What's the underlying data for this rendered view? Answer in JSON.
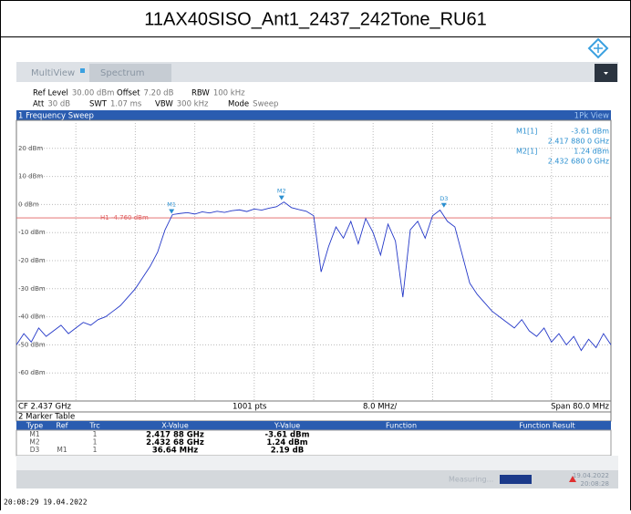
{
  "header": {
    "title": "11AX40SISO_Ant1_2437_242Tone_RU61"
  },
  "toolbar": {
    "app": "MultiView",
    "tab": "Spectrum"
  },
  "settings": {
    "row1": [
      [
        "Ref Level",
        "30.00 dBm"
      ],
      [
        "Offset",
        "7.20 dB"
      ],
      [
        "RBW",
        "100 kHz"
      ]
    ],
    "row2": [
      [
        "Att",
        "30 dB"
      ],
      [
        "SWT",
        "1.07 ms"
      ],
      [
        "VBW",
        "300 kHz"
      ],
      [
        "Mode",
        "Sweep"
      ]
    ]
  },
  "chart_data": {
    "type": "line",
    "title": "1 Frequency Sweep",
    "trace_label": "1Pk View",
    "x": [
      2.397,
      2.398,
      2.399,
      2.4,
      2.401,
      2.402,
      2.403,
      2.404,
      2.405,
      2.406,
      2.407,
      2.408,
      2.409,
      2.41,
      2.411,
      2.412,
      2.413,
      2.414,
      2.415,
      2.416,
      2.417,
      2.418,
      2.419,
      2.42,
      2.421,
      2.422,
      2.423,
      2.424,
      2.425,
      2.426,
      2.427,
      2.428,
      2.429,
      2.43,
      2.431,
      2.432,
      2.433,
      2.434,
      2.435,
      2.436,
      2.437,
      2.438,
      2.439,
      2.44,
      2.441,
      2.442,
      2.443,
      2.444,
      2.445,
      2.446,
      2.447,
      2.448,
      2.449,
      2.45,
      2.451,
      2.452,
      2.453,
      2.454,
      2.455,
      2.456,
      2.457,
      2.458,
      2.459,
      2.46,
      2.461,
      2.462,
      2.463,
      2.464,
      2.465,
      2.466,
      2.467,
      2.468,
      2.469,
      2.47,
      2.471,
      2.472,
      2.473,
      2.474,
      2.475,
      2.476,
      2.477
    ],
    "series": [
      {
        "color": "#2438c8",
        "values": [
          -50,
          -46,
          -49,
          -44,
          -47,
          -45,
          -43,
          -46,
          -44,
          -42,
          -43,
          -41,
          -40,
          -38,
          -36,
          -33,
          -30,
          -26,
          -22,
          -17,
          -9,
          -3.6,
          -3.2,
          -2.9,
          -3.4,
          -2.6,
          -3.0,
          -2.4,
          -2.8,
          -2.2,
          -1.9,
          -2.5,
          -1.6,
          -2.0,
          -1.3,
          -0.8,
          0.9,
          -1.1,
          -1.8,
          -2.4,
          -4,
          -24,
          -15,
          -8,
          -12,
          -6,
          -14,
          -5,
          -10,
          -18,
          -7,
          -13,
          -33,
          -9,
          -6,
          -12,
          -4,
          -2,
          -6,
          -8,
          -18,
          -28,
          -32,
          -35,
          -38,
          -40,
          -42,
          -44,
          -41,
          -45,
          -47,
          -44,
          -49,
          -46,
          -50,
          -47,
          -52,
          -48,
          -51,
          -46,
          -50
        ]
      }
    ],
    "xlim": [
      2.397,
      2.477
    ],
    "ylim": [
      -70,
      30
    ],
    "yticks": [
      {
        "value": 20,
        "label": "20 dBm"
      },
      {
        "value": 10,
        "label": "10 dBm"
      },
      {
        "value": 0,
        "label": "0 dBm"
      },
      {
        "value": -10,
        "label": "-10 dBm"
      },
      {
        "value": -20,
        "label": "-20 dBm"
      },
      {
        "value": -30,
        "label": "-30 dBm"
      },
      {
        "value": -40,
        "label": "-40 dBm"
      },
      {
        "value": -50,
        "label": "-50 dBm"
      },
      {
        "value": -60,
        "label": "-60 dBm"
      }
    ],
    "grid": true,
    "threshold": {
      "label": "H1 -4.760 dBm",
      "value": -4.76,
      "color": "#e06060"
    },
    "markers": [
      {
        "label": "M1",
        "x": 2.41788,
        "y": -3.61
      },
      {
        "label": "M2",
        "x": 2.43268,
        "y": 1.24
      },
      {
        "label": "D3",
        "x": 2.45452,
        "y": -1.42
      }
    ],
    "marker_readout": [
      [
        "M1[1]",
        "-3.61 dBm",
        "2.417 880 0 GHz"
      ],
      [
        "M2[1]",
        "1.24 dBm",
        "2.432 680 0 GHz"
      ]
    ],
    "footer": {
      "center": "CF 2.437 GHz",
      "points": "1001 pts",
      "div": "8.0 MHz/",
      "span": "Span 80.0 MHz"
    }
  },
  "marker_table": {
    "title": "2 Marker Table",
    "columns": [
      "Type",
      "Ref",
      "Trc",
      "X-Value",
      "Y-Value",
      "Function",
      "Function Result"
    ],
    "rows": [
      [
        "M1",
        "",
        "1",
        "2.417 88 GHz",
        "-3.61 dBm"
      ],
      [
        "M2",
        "",
        "1",
        "2.432 68 GHz",
        "1.24 dBm"
      ],
      [
        "D3",
        "M1",
        "1",
        "36.64 MHz",
        "2.19 dB"
      ]
    ]
  },
  "status": {
    "state": "Measuring...",
    "date": "19.04.2022",
    "time": "20:08:28"
  },
  "timestamp": "20:08:29 19.04.2022"
}
